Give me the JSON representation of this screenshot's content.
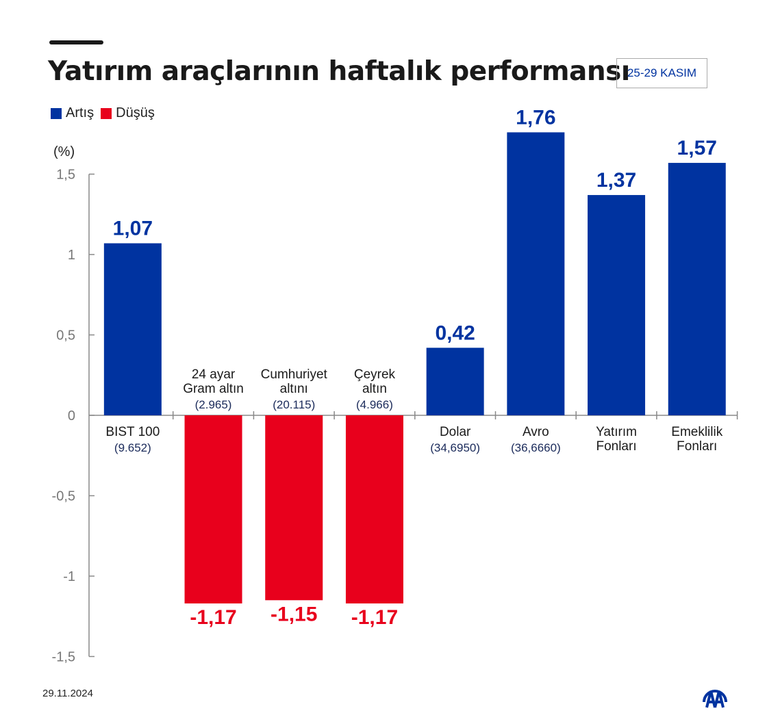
{
  "header": {
    "title": "Yatırım araçlarının haftalık performansı",
    "date_range": "25-29 KASIM"
  },
  "footer": {
    "date": "29.11.2024",
    "logo_text": "AA"
  },
  "colors": {
    "increase": "#0033a0",
    "decrease": "#e8001c",
    "axis": "#888888",
    "tick_label": "#777777",
    "category_label": "#1a1a1a",
    "sub_label": "#1a2a5a"
  },
  "chart_data": {
    "type": "bar",
    "title": "Yatırım araçlarının haftalık performansı",
    "ylabel": "(%)",
    "ylim": [
      -1.5,
      1.5
    ],
    "yticks": [
      1.5,
      1,
      0.5,
      0,
      -0.5,
      -1,
      -1.5
    ],
    "ytick_labels": [
      "1,5",
      "1",
      "0,5",
      "0",
      "-0,5",
      "-1",
      "-1,5"
    ],
    "legend": {
      "placement": "top-left",
      "entries": [
        "Artış",
        "Düşüş"
      ]
    },
    "grid": false,
    "categories": [
      {
        "lines": [
          "BIST 100"
        ],
        "sub": "(9.652)"
      },
      {
        "lines": [
          "24 ayar",
          "Gram altın"
        ],
        "sub": "(2.965)"
      },
      {
        "lines": [
          "Cumhuriyet",
          "altını"
        ],
        "sub": "(20.115)"
      },
      {
        "lines": [
          "Çeyrek",
          "altın"
        ],
        "sub": "(4.966)"
      },
      {
        "lines": [
          "Dolar"
        ],
        "sub": "(34,6950)"
      },
      {
        "lines": [
          "Avro"
        ],
        "sub": "(36,6660)"
      },
      {
        "lines": [
          "Yatırım",
          "Fonları"
        ],
        "sub": ""
      },
      {
        "lines": [
          "Emeklilik",
          "Fonları"
        ],
        "sub": ""
      }
    ],
    "values": [
      1.07,
      -1.17,
      -1.15,
      -1.17,
      0.42,
      1.76,
      1.37,
      1.57
    ],
    "value_labels": [
      "1,07",
      "-1,17",
      "-1,15",
      "-1,17",
      "0,42",
      "1,76",
      "1,37",
      "1,57"
    ]
  }
}
